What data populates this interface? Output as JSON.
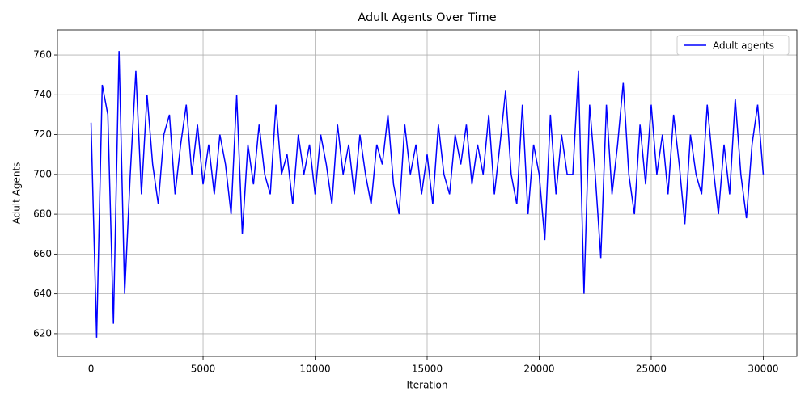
{
  "chart_data": {
    "type": "line",
    "title": "Adult Agents Over Time",
    "x_label": "Iteration",
    "y_label": "Adult Agents",
    "x": [
      0,
      250,
      500,
      750,
      1000,
      1250,
      1500,
      1750,
      2000,
      2250,
      2500,
      2750,
      3000,
      3250,
      3500,
      3750,
      4000,
      4250,
      4500,
      4750,
      5000,
      5250,
      5500,
      5750,
      6000,
      6250,
      6500,
      6750,
      7000,
      7250,
      7500,
      7750,
      8000,
      8250,
      8500,
      8750,
      9000,
      9250,
      9500,
      9750,
      10000,
      10250,
      10500,
      10750,
      11000,
      11250,
      11500,
      11750,
      12000,
      12250,
      12500,
      12750,
      13000,
      13250,
      13500,
      13750,
      14000,
      14250,
      14500,
      14750,
      15000,
      15250,
      15500,
      15750,
      16000,
      16250,
      16500,
      16750,
      17000,
      17250,
      17500,
      17750,
      18000,
      18250,
      18500,
      18750,
      19000,
      19250,
      19500,
      19750,
      20000,
      20250,
      20500,
      20750,
      21000,
      21250,
      21500,
      21750,
      22000,
      22250,
      22500,
      22750,
      23000,
      23250,
      23500,
      23750,
      24000,
      24250,
      24500,
      24750,
      25000,
      25250,
      25500,
      25750,
      26000,
      26250,
      26500,
      26750,
      27000,
      27250,
      27500,
      27750,
      28000,
      28250,
      28500,
      28750,
      29000,
      29250,
      29500,
      29750,
      30000
    ],
    "series": [
      {
        "name": "Adult agents",
        "color": "#0000ff",
        "values": [
          726,
          618,
          745,
          730,
          625,
          762,
          640,
          700,
          752,
          690,
          740,
          705,
          685,
          720,
          730,
          690,
          715,
          735,
          700,
          725,
          695,
          715,
          690,
          720,
          705,
          680,
          740,
          670,
          715,
          695,
          725,
          700,
          690,
          735,
          700,
          710,
          685,
          720,
          700,
          715,
          690,
          720,
          705,
          685,
          725,
          700,
          715,
          690,
          720,
          700,
          685,
          715,
          705,
          730,
          695,
          680,
          725,
          700,
          715,
          690,
          710,
          685,
          725,
          700,
          690,
          720,
          705,
          725,
          695,
          715,
          700,
          730,
          690,
          715,
          742,
          700,
          685,
          735,
          680,
          715,
          700,
          667,
          730,
          690,
          720,
          700,
          700,
          752,
          640,
          735,
          700,
          658,
          735,
          690,
          715,
          746,
          700,
          680,
          725,
          695,
          735,
          700,
          720,
          690,
          730,
          705,
          675,
          720,
          700,
          690,
          735,
          705,
          680,
          715,
          690,
          738,
          700,
          678,
          715,
          735,
          700
        ]
      }
    ],
    "xlim": [
      -1500,
      31500
    ],
    "ylim": [
      608.6,
      772.6
    ],
    "xticks": [
      0,
      5000,
      10000,
      15000,
      20000,
      25000,
      30000
    ],
    "yticks": [
      620,
      640,
      660,
      680,
      700,
      720,
      740,
      760
    ],
    "grid": true,
    "legend": "upper right"
  }
}
